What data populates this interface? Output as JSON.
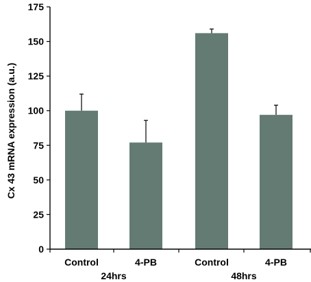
{
  "chart_data": {
    "type": "bar",
    "title": "",
    "xlabel": "",
    "ylabel": "Cx 43 mRNA expression (a.u.)",
    "ylim": [
      0,
      175
    ],
    "yticks": [
      0,
      25,
      50,
      75,
      100,
      125,
      150,
      175
    ],
    "categories": [
      "Control",
      "4-PB",
      "Control",
      "4-PB"
    ],
    "groups": [
      {
        "label": "24hrs",
        "categories": [
          0,
          1
        ]
      },
      {
        "label": "48hrs",
        "categories": [
          2,
          3
        ]
      }
    ],
    "values": [
      100,
      77,
      156,
      97
    ],
    "errors": [
      12,
      16,
      3,
      7
    ],
    "bar_color": "#637b72",
    "axis_color": "#000000",
    "grid": false,
    "legend": "none"
  }
}
